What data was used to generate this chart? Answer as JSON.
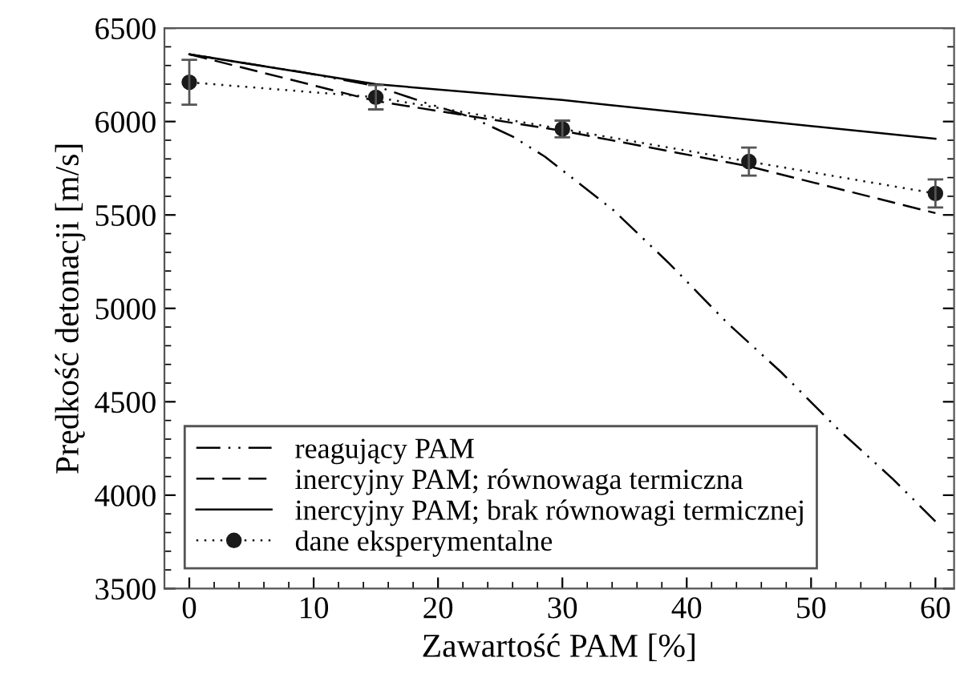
{
  "chart_data": {
    "type": "line",
    "xlabel": "Zawartość PAM [%]",
    "ylabel": "Prędkość detonacji [m/s]",
    "xlim": [
      -2,
      61.5
    ],
    "ylim": [
      3500,
      6500
    ],
    "xticks": [
      0,
      10,
      20,
      30,
      40,
      50,
      60
    ],
    "yticks": [
      3500,
      4000,
      4500,
      5000,
      5500,
      6000,
      6500
    ],
    "grid": false,
    "legend": "bottom left",
    "series": [
      {
        "name": "reagujący PAM",
        "color": "#000000",
        "line_style": "dashdot",
        "marker": "none",
        "x": [
          0,
          9,
          15,
          19,
          22.6,
          26,
          28.6,
          34.1,
          38.6,
          43.2,
          47.6,
          52.1,
          56.6,
          60
        ],
        "values": [
          6360,
          6265,
          6190,
          6100,
          6025,
          5920,
          5812,
          5526,
          5240,
          4926,
          4658,
          4358,
          4085,
          3860
        ]
      },
      {
        "name": "inercyjny PAM; równowaga termiczna",
        "color": "#000000",
        "line_style": "dashed",
        "marker": "none",
        "x": [
          0,
          15,
          30,
          45,
          60
        ],
        "values": [
          6360,
          6110,
          5950,
          5760,
          5510
        ]
      },
      {
        "name": "inercyjny PAM; brak równowagi termicznej",
        "color": "#000000",
        "line_style": "solid",
        "marker": "none",
        "x": [
          0,
          15,
          30,
          45,
          60
        ],
        "values": [
          6360,
          6200,
          6115,
          6010,
          5908
        ]
      },
      {
        "name": "dane eksperymentalne",
        "color": "#1a1a1a",
        "line_style": "dotted",
        "marker": "circle",
        "x": [
          0,
          15,
          30,
          45,
          60
        ],
        "values": [
          6210,
          6130,
          5960,
          5786,
          5615
        ],
        "errors": [
          120,
          65,
          45,
          75,
          75
        ]
      }
    ]
  }
}
